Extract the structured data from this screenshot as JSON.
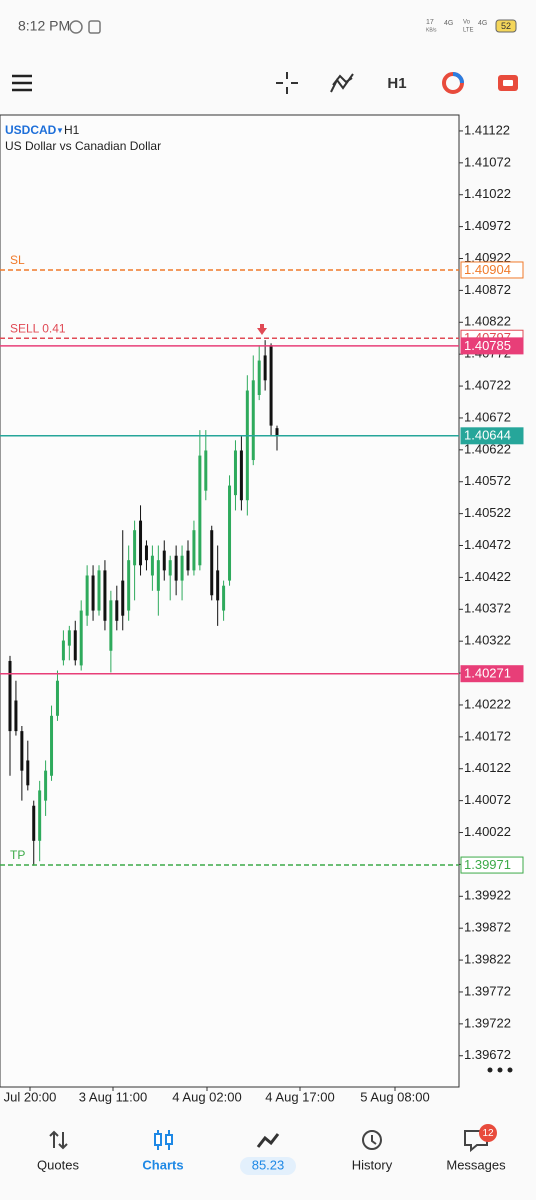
{
  "status_bar": {
    "time": "8:12 PM",
    "speed": "17",
    "speed_unit": "KB/s",
    "net1": "4G",
    "volte": "Vo",
    "lte": "LTE",
    "net2": "4G",
    "battery": "52"
  },
  "toolbar": {
    "timeframe": "H1"
  },
  "chart_data": {
    "type": "candlestick",
    "symbol": "USDCAD",
    "timeframe": "H1",
    "subtitle": "US Dollar vs Canadian Dollar",
    "bull_color": "#2eaa5c",
    "bear_color": "#111111",
    "open": [
      1.40291,
      1.40229,
      1.40181,
      1.40135,
      1.40064,
      1.40009,
      1.40072,
      1.40111,
      1.40205,
      1.40292,
      1.40315,
      1.40339,
      1.40284,
      1.40362,
      1.40425,
      1.4037,
      1.40433,
      1.40307,
      1.40386,
      1.40417,
      1.4037,
      1.40441,
      1.40511,
      1.40472,
      1.40425,
      1.40401,
      1.40464,
      1.40425,
      1.40456,
      1.40417,
      1.40464,
      1.40433,
      1.40441,
      1.40558,
      1.40496,
      1.40433,
      1.4037,
      1.40417,
      1.40551,
      1.40621,
      1.40543,
      1.40606,
      1.40708,
      1.4077,
      1.40786,
      1.40656
    ],
    "high": [
      1.40299,
      1.4026,
      1.40189,
      1.40166,
      1.40072,
      1.40103,
      1.40135,
      1.40221,
      1.40276,
      1.40339,
      1.40346,
      1.40354,
      1.40386,
      1.40441,
      1.40441,
      1.40441,
      1.40449,
      1.40401,
      1.40409,
      1.40496,
      1.40472,
      1.40511,
      1.40535,
      1.4048,
      1.40472,
      1.40472,
      1.4048,
      1.40456,
      1.40472,
      1.40472,
      1.4048,
      1.40511,
      1.40653,
      1.40653,
      1.40503,
      1.40472,
      1.40417,
      1.40582,
      1.40637,
      1.40645,
      1.40739,
      1.4077,
      1.40786,
      1.40794,
      1.40789,
      1.4066
    ],
    "low": [
      1.40111,
      1.40174,
      1.40072,
      1.40088,
      1.3997,
      1.39977,
      1.40048,
      1.40103,
      1.40197,
      1.40284,
      1.40292,
      1.40284,
      1.40276,
      1.40346,
      1.40354,
      1.40362,
      1.40339,
      1.40273,
      1.40339,
      1.40339,
      1.40354,
      1.40386,
      1.40425,
      1.40433,
      1.40401,
      1.40362,
      1.40417,
      1.40386,
      1.40394,
      1.40386,
      1.40425,
      1.40425,
      1.40433,
      1.40543,
      1.40386,
      1.40346,
      1.40354,
      1.40409,
      1.40527,
      1.40527,
      1.40519,
      1.40598,
      1.407,
      1.40715,
      1.40645,
      1.40621
    ],
    "close": [
      1.40181,
      1.40181,
      1.40119,
      1.40096,
      1.40009,
      1.40088,
      1.40119,
      1.40205,
      1.4026,
      1.40323,
      1.40339,
      1.40292,
      1.4037,
      1.40425,
      1.4037,
      1.40433,
      1.40354,
      1.40386,
      1.40354,
      1.40362,
      1.40449,
      1.40496,
      1.40441,
      1.40449,
      1.40456,
      1.40449,
      1.40433,
      1.40449,
      1.40417,
      1.40456,
      1.40433,
      1.40496,
      1.40613,
      1.40621,
      1.40394,
      1.40386,
      1.40409,
      1.40566,
      1.40621,
      1.40543,
      1.40715,
      1.40731,
      1.40762,
      1.40731,
      1.4066,
      1.40644
    ],
    "xticks": [
      "Jul 20:00",
      "3 Aug 11:00",
      "4 Aug 02:00",
      "4 Aug 17:00",
      "5 Aug 08:00"
    ],
    "ylim": [
      1.39623,
      1.41147
    ],
    "yticks": [
      1.41122,
      1.41072,
      1.41022,
      1.40972,
      1.40922,
      1.40872,
      1.40822,
      1.40772,
      1.40722,
      1.40672,
      1.40622,
      1.40572,
      1.40522,
      1.40472,
      1.40422,
      1.40372,
      1.40322,
      1.40272,
      1.40222,
      1.40172,
      1.40122,
      1.40072,
      1.40022,
      1.39972,
      1.39922,
      1.39872,
      1.39822,
      1.39772,
      1.39722,
      1.39672
    ],
    "levels": [
      {
        "label": "SL",
        "value": 1.40904,
        "color": "#f07a2a",
        "style": "dashed",
        "tag": "outline"
      },
      {
        "label": "SELL 0.41",
        "value": 1.40797,
        "color": "#e04a55",
        "style": "dashed",
        "tag": "outline"
      },
      {
        "value": 1.40785,
        "color": "#e83e78",
        "style": "solid",
        "tag": "filled"
      },
      {
        "value": 1.40644,
        "color": "#26a69a",
        "style": "solid",
        "tag": "filled"
      },
      {
        "value": 1.40271,
        "color": "#e83e78",
        "style": "solid",
        "tag": "filled"
      },
      {
        "label": "TP",
        "value": 1.39971,
        "color": "#3caa48",
        "style": "dashed",
        "tag": "outline"
      }
    ]
  },
  "nav": {
    "tabs": [
      "Quotes",
      "Charts",
      "85.23",
      "History",
      "Messages"
    ],
    "active": 1,
    "badge": "12"
  }
}
